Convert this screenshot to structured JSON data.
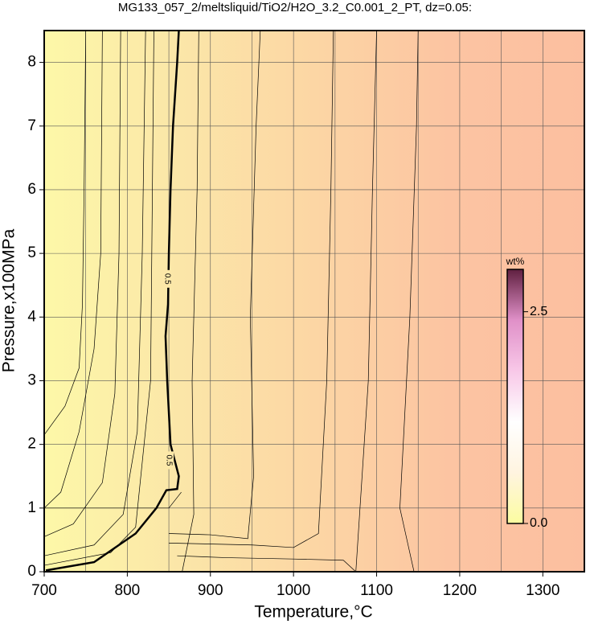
{
  "chart_data": {
    "type": "contour",
    "title": "MG133_057_2/meltsliquid/TiO2/H2O_3.2_C0.001_2_PT, dz=0.05:",
    "x_label": "Temperature,°C",
    "y_label": "Pressure,x100MPa",
    "xlim": [
      700,
      1350
    ],
    "ylim": [
      0,
      8.5
    ],
    "xticks": [
      700,
      800,
      900,
      1000,
      1100,
      1200,
      1300
    ],
    "yticks": [
      0,
      1,
      2,
      3,
      4,
      5,
      6,
      7,
      8
    ],
    "x_grid": [
      750,
      850,
      950,
      1050,
      1150,
      1250
    ],
    "grid": true,
    "background_colors": [
      "#fdf8a8",
      "#fbe6a8",
      "#fcd6a4",
      "#fcc4a2",
      "#fcbfa0"
    ],
    "contours": [
      {
        "name": "0.5",
        "bold": true,
        "x": [
          702,
          760,
          810,
          835,
          847,
          860,
          862,
          852,
          848,
          846,
          849,
          850,
          852,
          855,
          860,
          862
        ],
        "y": [
          0.02,
          0.15,
          0.6,
          1.0,
          1.28,
          1.3,
          1.5,
          2.0,
          3.0,
          3.7,
          4.2,
          5.0,
          6.0,
          7.0,
          8.0,
          8.5
        ]
      },
      {
        "x": [
          700,
          725,
          742,
          746,
          748,
          750
        ],
        "y": [
          2.15,
          2.6,
          3.2,
          4.2,
          6,
          8.5
        ]
      },
      {
        "x": [
          700,
          720,
          742,
          760,
          768,
          770
        ],
        "y": [
          1.0,
          1.25,
          2.2,
          3.5,
          5,
          8.5
        ]
      },
      {
        "x": [
          700,
          735,
          770,
          785,
          790,
          792
        ],
        "y": [
          0.55,
          0.75,
          1.4,
          2.8,
          5,
          8.5
        ]
      },
      {
        "x": [
          700,
          760,
          795,
          812,
          818,
          822
        ],
        "y": [
          0.25,
          0.42,
          0.9,
          2.2,
          5,
          8.5
        ]
      },
      {
        "x": [
          700,
          780,
          810,
          828,
          832
        ],
        "y": [
          0.1,
          0.3,
          0.7,
          3,
          8.5
        ]
      },
      {
        "x": [
          700,
          850,
          865
        ],
        "y": [
          1.0,
          1.0,
          1.25
        ]
      },
      {
        "x": [
          866,
          880,
          878,
          884,
          886
        ],
        "y": [
          0.0,
          0.9,
          3,
          6,
          8.5
        ]
      },
      {
        "x": [
          850,
          900,
          945,
          952,
          948,
          955,
          960
        ],
        "y": [
          0.6,
          0.58,
          0.52,
          1.5,
          4,
          7,
          8.5
        ]
      },
      {
        "x": [
          850,
          950,
          1000,
          1030,
          1040,
          1045,
          1048
        ],
        "y": [
          0.45,
          0.42,
          0.38,
          0.6,
          3,
          6,
          8.5
        ]
      },
      {
        "x": [
          1075,
          1078,
          1090,
          1095,
          1100
        ],
        "y": [
          0.0,
          0.6,
          3,
          6,
          8.5
        ]
      },
      {
        "x": [
          1145,
          1128,
          1140,
          1148,
          1150
        ],
        "y": [
          0.0,
          1.0,
          4,
          7,
          8.5
        ]
      },
      {
        "x": [
          860,
          920,
          1000,
          1060,
          1075
        ],
        "y": [
          0.25,
          0.22,
          0.2,
          0.18,
          0.0
        ]
      }
    ],
    "colorbar": {
      "label": "wt%",
      "lim": [
        0,
        3.0
      ],
      "ticks": [
        {
          "value": 0,
          "label": "0.0"
        },
        {
          "value": 2.5,
          "label": "2.5"
        }
      ],
      "colors": [
        "#fcfca0",
        "#fff4e0",
        "#ffffff",
        "#f8c8e8",
        "#e090c8",
        "#602040"
      ]
    }
  }
}
